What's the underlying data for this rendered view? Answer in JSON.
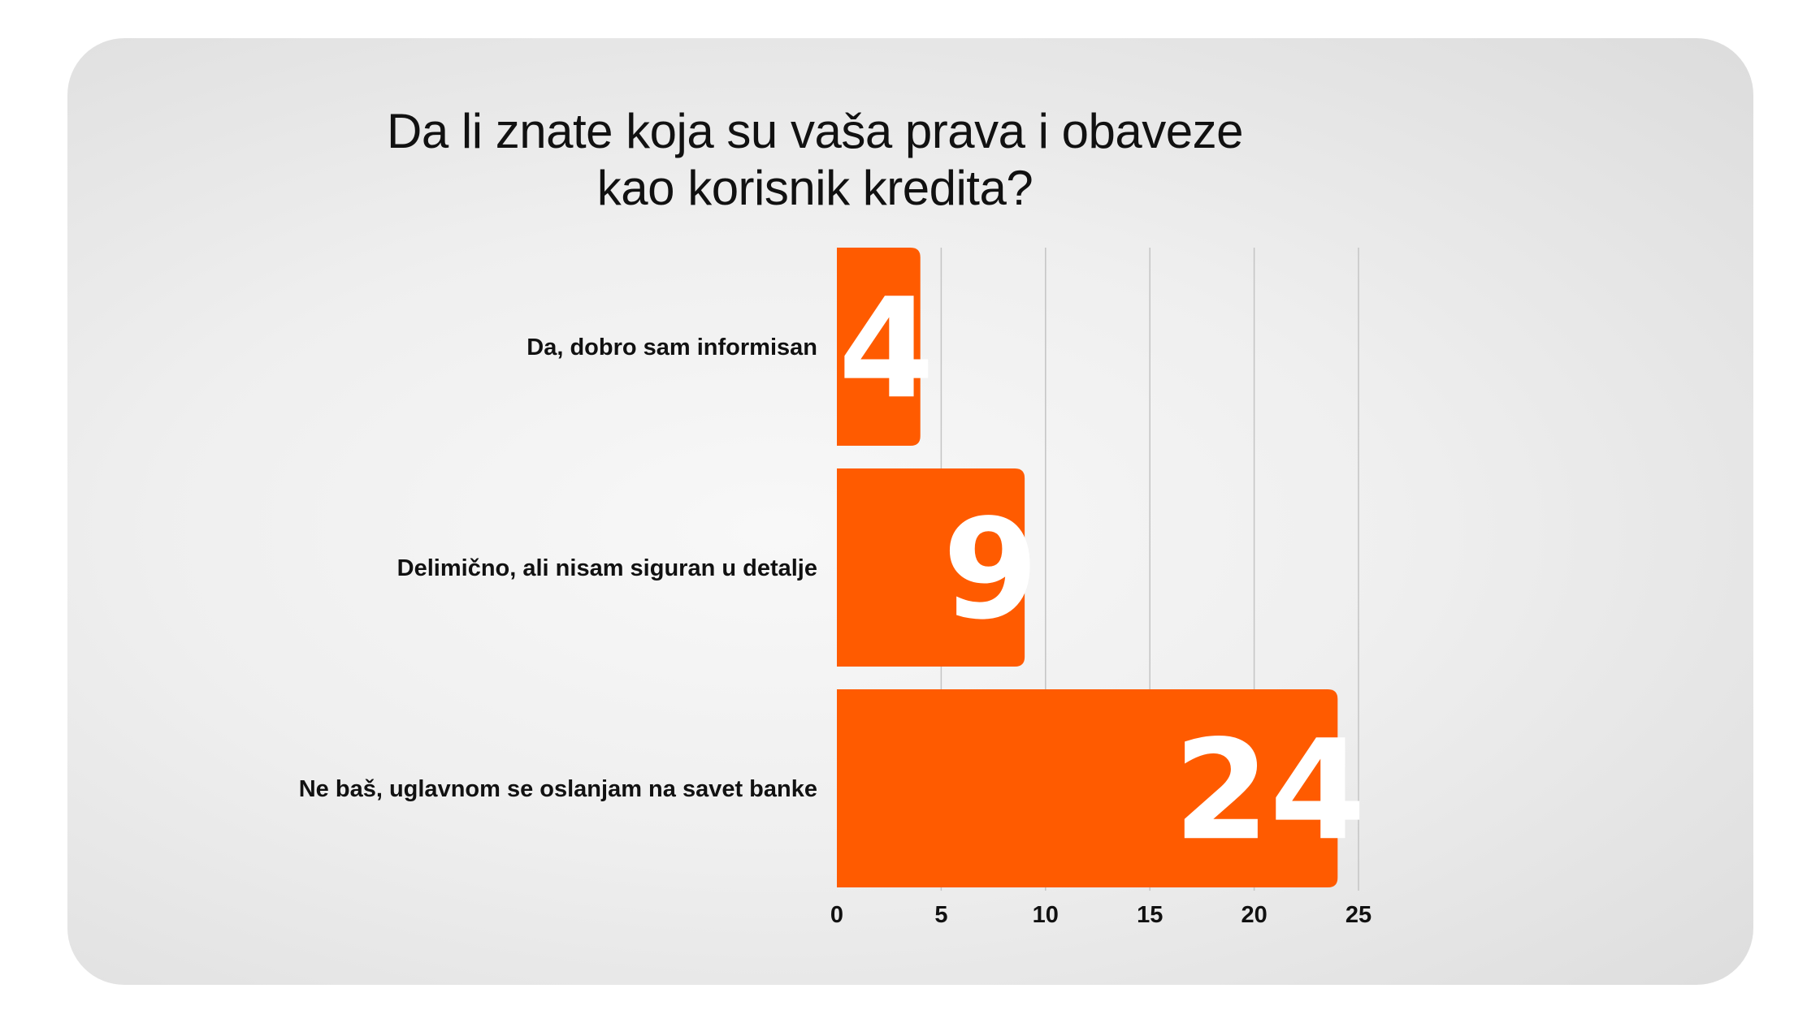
{
  "chart_data": {
    "type": "bar",
    "orientation": "horizontal",
    "title_lines": [
      "Da li znate koja su vaša prava i obaveze",
      "kao korisnik kredita?"
    ],
    "categories": [
      "Da, dobro sam informisan",
      "Delimično, ali nisam siguran u detalje",
      "Ne baš, uglavnom se oslanjam na savet banke"
    ],
    "values": [
      4,
      9,
      24
    ],
    "value_labels": [
      "4",
      "9",
      "24"
    ],
    "xlim": [
      0,
      25
    ],
    "xticks": [
      "0",
      "5",
      "10",
      "15",
      "20",
      "25"
    ],
    "grid": "vertical",
    "bar_color": "#ff5b00",
    "label_color": "#ffffff"
  }
}
